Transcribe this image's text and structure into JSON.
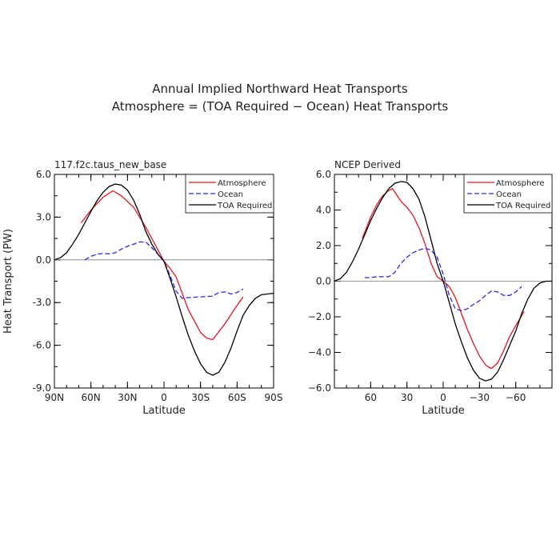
{
  "title_line1": "Annual Implied Northward Heat Transports",
  "title_line2": "Atmosphere = (TOA Required − Ocean) Heat Transports",
  "legend_entries": [
    {
      "name": "Atmosphere",
      "color": "#e8141e",
      "style": "solid"
    },
    {
      "name": "Ocean",
      "color": "#2a2ae8",
      "style": "dashed"
    },
    {
      "name": "TOA Required",
      "color": "#000000",
      "style": "solid"
    }
  ],
  "chart_data": [
    {
      "type": "line",
      "panel_title": "117.f2c.taus_new_base",
      "xlabel": "Latitude",
      "ylabel": "Heat Transport (PW)",
      "xlim": [
        90,
        -90
      ],
      "ylim": [
        -9,
        6
      ],
      "xticks": [
        90,
        60,
        30,
        0,
        -30,
        -60,
        -90
      ],
      "xtick_labels": [
        "90N",
        "60N",
        "30N",
        "0",
        "30S",
        "60S",
        "90S"
      ],
      "yticks": [
        6,
        3,
        0,
        -3,
        -6,
        -9
      ],
      "ytick_labels": [
        "6.0",
        "3.0",
        "0.0",
        "-3.0",
        "-6.0",
        "-9.0"
      ],
      "zero_line": true,
      "legend_position": "top-right",
      "series": [
        {
          "name": "Atmosphere",
          "color": "#e8141e",
          "dash": "none",
          "x": [
            68,
            60,
            50,
            42,
            35,
            25,
            15,
            5,
            0,
            -5,
            -10,
            -20,
            -30,
            -35,
            -40,
            -50,
            -60,
            -65
          ],
          "y": [
            2.6,
            3.5,
            4.4,
            4.85,
            4.5,
            3.7,
            2.3,
            0.7,
            -0.1,
            -0.6,
            -1.2,
            -3.5,
            -5.1,
            -5.5,
            -5.6,
            -4.5,
            -3.2,
            -2.6
          ]
        },
        {
          "name": "Ocean",
          "color": "#2a2ae8",
          "dash": "6,3",
          "x": [
            65,
            60,
            55,
            50,
            45,
            40,
            35,
            30,
            25,
            20,
            15,
            10,
            5,
            0,
            -5,
            -10,
            -15,
            -20,
            -30,
            -40,
            -45,
            -50,
            -55,
            -60,
            -65
          ],
          "y": [
            0.0,
            0.25,
            0.4,
            0.45,
            0.42,
            0.5,
            0.75,
            0.95,
            1.1,
            1.25,
            1.25,
            0.85,
            0.4,
            -0.1,
            -1.1,
            -2.2,
            -2.7,
            -2.65,
            -2.6,
            -2.55,
            -2.3,
            -2.25,
            -2.4,
            -2.3,
            -2.05
          ]
        },
        {
          "name": "TOA Required",
          "color": "#000000",
          "dash": "none",
          "x": [
            90,
            85,
            80,
            75,
            70,
            65,
            60,
            55,
            50,
            45,
            40,
            35,
            30,
            25,
            20,
            15,
            10,
            5,
            0,
            -5,
            -10,
            -15,
            -20,
            -25,
            -30,
            -35,
            -40,
            -45,
            -50,
            -55,
            -60,
            -65,
            -70,
            -75,
            -80,
            -85,
            -90
          ],
          "y": [
            0.0,
            0.15,
            0.5,
            1.1,
            1.8,
            2.6,
            3.4,
            4.15,
            4.75,
            5.15,
            5.32,
            5.25,
            4.9,
            4.2,
            3.2,
            2.0,
            1.1,
            0.4,
            -0.1,
            -1.3,
            -2.6,
            -4.0,
            -5.3,
            -6.4,
            -7.3,
            -7.9,
            -8.1,
            -7.9,
            -7.2,
            -6.2,
            -5.0,
            -3.9,
            -3.2,
            -2.7,
            -2.45,
            -2.4,
            -2.35
          ]
        }
      ]
    },
    {
      "type": "line",
      "panel_title": "NCEP Derived",
      "xlabel": "Latitude",
      "ylabel": "",
      "xlim": [
        90,
        -90
      ],
      "ylim": [
        -6,
        6
      ],
      "xticks": [
        60,
        30,
        0,
        -30,
        -60
      ],
      "xtick_labels": [
        "60",
        "30",
        "0",
        "−30",
        "−60"
      ],
      "yticks": [
        6,
        4,
        2,
        0,
        -2,
        -4,
        -6
      ],
      "ytick_labels": [
        "6.0",
        "4.0",
        "2.0",
        "0.0",
        "−2.0",
        "−4.0",
        "−6.0"
      ],
      "zero_line": true,
      "legend_position": "top-right",
      "series": [
        {
          "name": "Atmosphere",
          "color": "#e8141e",
          "dash": "none",
          "x": [
            67,
            60,
            55,
            50,
            45,
            42,
            40,
            35,
            30,
            25,
            20,
            15,
            10,
            5,
            0,
            -5,
            -10,
            -15,
            -20,
            -25,
            -30,
            -35,
            -38,
            -40,
            -45,
            -50,
            -55,
            -60,
            -67
          ],
          "y": [
            2.4,
            3.6,
            4.3,
            4.8,
            5.1,
            5.2,
            5.0,
            4.5,
            4.15,
            3.7,
            3.0,
            2.1,
            1.0,
            0.25,
            0.0,
            -0.3,
            -0.9,
            -1.8,
            -2.7,
            -3.5,
            -4.2,
            -4.7,
            -4.85,
            -4.9,
            -4.6,
            -3.9,
            -3.1,
            -2.5,
            -1.7
          ]
        },
        {
          "name": "Ocean",
          "color": "#2a2ae8",
          "dash": "6,3",
          "x": [
            65,
            60,
            55,
            50,
            45,
            40,
            35,
            30,
            25,
            20,
            15,
            10,
            5,
            0,
            -5,
            -10,
            -15,
            -20,
            -25,
            -30,
            -35,
            -40,
            -45,
            -50,
            -55,
            -60,
            -65
          ],
          "y": [
            0.2,
            0.2,
            0.25,
            0.25,
            0.25,
            0.5,
            1.0,
            1.35,
            1.6,
            1.75,
            1.85,
            1.75,
            1.35,
            0.4,
            -0.8,
            -1.55,
            -1.65,
            -1.55,
            -1.3,
            -1.1,
            -0.8,
            -0.55,
            -0.6,
            -0.8,
            -0.8,
            -0.6,
            -0.3
          ]
        },
        {
          "name": "TOA Required",
          "color": "#000000",
          "dash": "none",
          "x": [
            90,
            85,
            80,
            75,
            70,
            65,
            60,
            55,
            50,
            45,
            40,
            35,
            30,
            25,
            20,
            15,
            10,
            5,
            0,
            -5,
            -10,
            -15,
            -20,
            -25,
            -30,
            -35,
            -40,
            -45,
            -50,
            -55,
            -60,
            -65,
            -70,
            -75,
            -80,
            -85,
            -90
          ],
          "y": [
            0.0,
            0.15,
            0.5,
            1.1,
            1.8,
            2.6,
            3.4,
            4.1,
            4.7,
            5.2,
            5.5,
            5.6,
            5.55,
            5.2,
            4.6,
            3.6,
            2.3,
            1.0,
            0.0,
            -1.2,
            -2.4,
            -3.4,
            -4.3,
            -5.0,
            -5.45,
            -5.6,
            -5.5,
            -5.1,
            -4.4,
            -3.6,
            -2.8,
            -1.8,
            -1.0,
            -0.4,
            -0.1,
            0.0,
            0.0
          ]
        }
      ]
    }
  ]
}
